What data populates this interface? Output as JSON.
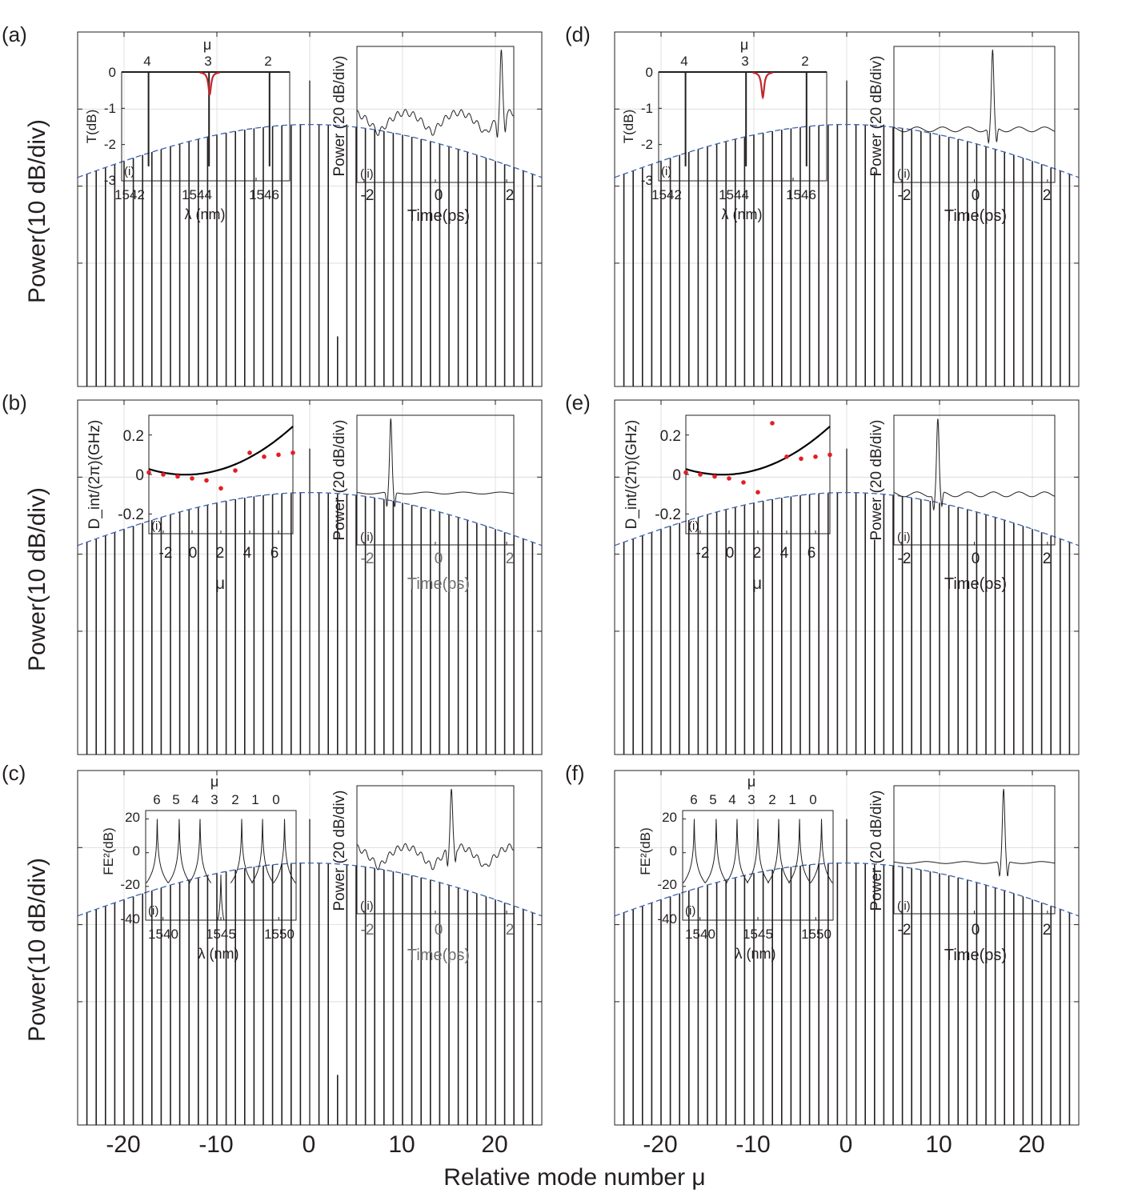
{
  "figure": {
    "xlabel": "Relative mode number μ",
    "ylabel": "Power(10 dB/div)",
    "x_ticks": [
      "-20",
      "-10",
      "0",
      "10",
      "20"
    ]
  },
  "chart_data": [
    {
      "panel": "(a)",
      "type": "bar",
      "xlabel": "Relative mode number μ",
      "ylabel": "Power(10 dB/div)",
      "x_range": [
        -25,
        25
      ],
      "y_range_db": [
        -46,
        0
      ],
      "envelope": "sech2 fit (dashed)",
      "special": {
        "pump": 0,
        "tall_extra": [],
        "low": [
          3
        ],
        "mid_low": []
      },
      "insets": [
        {
          "label": "(i)",
          "type": "line",
          "xlabel": "λ (nm)",
          "ylabel": "T(dB)",
          "xlim": [
            1542,
            1547
          ],
          "ylim": [
            -3,
            0
          ],
          "x_ticks": [
            "1542",
            "1544",
            "1546"
          ],
          "y_ticks": [
            "0",
            "-1",
            "-2",
            "-3"
          ],
          "top_axis_label": "μ",
          "top_ticks": [
            "4",
            "3",
            "2"
          ],
          "resonances_nm": [
            1542.8,
            1544.6,
            1546.4
          ],
          "resonance_depth_db": -2.6,
          "red_dip": {
            "center_nm": 1544.62,
            "depth_db": -0.62
          }
        },
        {
          "label": "(ii)",
          "type": "line",
          "xlabel": "Time(ps)",
          "ylabel": "Power (20 dB/div)",
          "xlim": [
            -2.2,
            2.2
          ],
          "x_ticks": [
            "-2",
            "0",
            "2"
          ],
          "pulse_center_ps": 1.85,
          "background": "modulated"
        }
      ]
    },
    {
      "panel": "(b)",
      "type": "bar",
      "xlabel": "Relative mode number μ",
      "ylabel": "Power(10 dB/div)",
      "x_range": [
        -25,
        25
      ],
      "y_range_db": [
        -46,
        0
      ],
      "envelope": "sech2 fit (dashed)",
      "special": {
        "pump": 0,
        "tall_extra": [],
        "low": [],
        "mid_low": []
      },
      "insets": [
        {
          "label": "(i)",
          "type": "scatter",
          "xlabel": "μ",
          "ylabel": "D_int/(2π)(GHz)",
          "xlim": [
            -3,
            7
          ],
          "ylim": [
            -0.3,
            0.3
          ],
          "x_ticks": [
            "-2",
            "0",
            "2",
            "4",
            "6"
          ],
          "y_ticks": [
            "0.2",
            "0",
            "-0.2"
          ],
          "points": {
            "mu": [
              -3,
              -2,
              -1,
              0,
              1,
              2,
              3,
              4,
              5,
              6,
              7
            ],
            "dint_ghz": [
              0.01,
              0.0,
              -0.01,
              -0.02,
              -0.03,
              -0.07,
              0.02,
              0.11,
              0.09,
              0.1,
              0.11
            ]
          },
          "fit": {
            "type": "parabola",
            "a": 0.0044,
            "b": 0.004,
            "c": 0.0
          }
        },
        {
          "label": "(ii)",
          "type": "line",
          "xlabel": "Time(ps)",
          "ylabel": "Power (20 dB/div)",
          "xlim": [
            -2.2,
            2.2
          ],
          "x_ticks": [
            "-2",
            "0",
            "2"
          ],
          "pulse_center_ps": -1.25,
          "background": "flat"
        }
      ]
    },
    {
      "panel": "(c)",
      "type": "bar",
      "xlabel": "Relative mode number μ",
      "ylabel": "Power(10 dB/div)",
      "x_range": [
        -25,
        25
      ],
      "y_range_db": [
        -46,
        0
      ],
      "envelope": "sech2 fit (dashed)",
      "special": {
        "pump": 0,
        "tall_extra": [],
        "low": [
          3
        ],
        "mid_low": []
      },
      "insets": [
        {
          "label": "(i)",
          "type": "line",
          "xlabel": "λ (nm)",
          "ylabel": "FE²(dB)",
          "xlim": [
            1538.5,
            1551.5
          ],
          "ylim": [
            -40,
            25
          ],
          "x_ticks": [
            "1540",
            "1545",
            "1550"
          ],
          "y_ticks": [
            "20",
            "0",
            "-20",
            "-40"
          ],
          "top_axis_label": "μ",
          "top_ticks": [
            "6",
            "5",
            "4",
            "3",
            "2",
            "1",
            "0"
          ],
          "peaks_nm": [
            1539.5,
            1541.4,
            1543.2,
            1545.0,
            1546.8,
            1548.6,
            1550.5
          ],
          "peak_heights_db": [
            20,
            20,
            20,
            -13,
            20,
            20,
            20
          ]
        },
        {
          "label": "(ii)",
          "type": "line",
          "xlabel": "Time(ps)",
          "ylabel": "Power (20 dB/div)",
          "xlim": [
            -2.2,
            2.2
          ],
          "x_ticks": [
            "-2",
            "0",
            "2"
          ],
          "pulse_center_ps": 0.45,
          "background": "modulated"
        }
      ]
    },
    {
      "panel": "(d)",
      "type": "bar",
      "xlabel": "Relative mode number μ",
      "ylabel": "Power(10 dB/div)",
      "x_range": [
        -25,
        25
      ],
      "y_range_db": [
        -46,
        0
      ],
      "envelope": "sech2 fit (dashed)",
      "special": {
        "pump": 0,
        "tall_extra": [],
        "low": [],
        "mid_low": [
          3
        ]
      },
      "insets": [
        {
          "label": "(i)",
          "type": "line",
          "xlabel": "λ (nm)",
          "ylabel": "T(dB)",
          "xlim": [
            1542,
            1547
          ],
          "ylim": [
            -3,
            0
          ],
          "x_ticks": [
            "1542",
            "1544",
            "1546"
          ],
          "y_ticks": [
            "0",
            "-1",
            "-2",
            "-3"
          ],
          "top_axis_label": "μ",
          "top_ticks": [
            "4",
            "3",
            "2"
          ],
          "resonances_nm": [
            1542.8,
            1544.6,
            1546.4
          ],
          "resonance_depth_db": -2.6,
          "red_dip": {
            "center_nm": 1545.1,
            "depth_db": -0.7
          }
        },
        {
          "label": "(ii)",
          "type": "line",
          "xlabel": "Time(ps)",
          "ylabel": "Power (20 dB/div)",
          "xlim": [
            -2.2,
            2.2
          ],
          "x_ticks": [
            "-2",
            "0",
            "2"
          ],
          "pulse_center_ps": 0.5,
          "background": "flat-ripple"
        }
      ]
    },
    {
      "panel": "(e)",
      "type": "bar",
      "xlabel": "Relative mode number μ",
      "ylabel": "Power(10 dB/div)",
      "x_range": [
        -25,
        25
      ],
      "y_range_db": [
        -46,
        0
      ],
      "envelope": "sech2 fit (dashed)",
      "special": {
        "pump": 0,
        "tall_extra": [],
        "low": [],
        "mid_low": [
          3
        ]
      },
      "insets": [
        {
          "label": "(i)",
          "type": "scatter",
          "xlabel": "μ",
          "ylabel": "D_int/(2π)(GHz)",
          "xlim": [
            -3,
            7
          ],
          "ylim": [
            -0.3,
            0.3
          ],
          "x_ticks": [
            "-2",
            "0",
            "2",
            "4",
            "6"
          ],
          "y_ticks": [
            "0.2",
            "0",
            "-0.2"
          ],
          "points": {
            "mu": [
              -3,
              -2,
              -1,
              0,
              1,
              2,
              3,
              4,
              5,
              6,
              7
            ],
            "dint_ghz": [
              0.01,
              0.0,
              -0.01,
              -0.02,
              -0.04,
              -0.09,
              0.26,
              0.09,
              0.08,
              0.09,
              0.1
            ]
          },
          "fit": {
            "type": "parabola",
            "a": 0.0044,
            "b": 0.004,
            "c": 0.0
          }
        },
        {
          "label": "(ii)",
          "type": "line",
          "xlabel": "Time(ps)",
          "ylabel": "Power (20 dB/div)",
          "xlim": [
            -2.2,
            2.2
          ],
          "x_ticks": [
            "-2",
            "0",
            "2"
          ],
          "pulse_center_ps": -1.0,
          "background": "flat-ripple"
        }
      ]
    },
    {
      "panel": "(f)",
      "type": "bar",
      "xlabel": "Relative mode number μ",
      "ylabel": "Power(10 dB/div)",
      "x_range": [
        -25,
        25
      ],
      "y_range_db": [
        -46,
        0
      ],
      "envelope": "sech2 fit (dashed)",
      "special": {
        "pump": 0,
        "tall_extra": [],
        "low": [],
        "mid_low": []
      },
      "insets": [
        {
          "label": "(i)",
          "type": "line",
          "xlabel": "λ (nm)",
          "ylabel": "FE²(dB)",
          "xlim": [
            1538.5,
            1551.5
          ],
          "ylim": [
            -40,
            25
          ],
          "x_ticks": [
            "1540",
            "1545",
            "1550"
          ],
          "y_ticks": [
            "20",
            "0",
            "-20",
            "-40"
          ],
          "top_axis_label": "μ",
          "top_ticks": [
            "6",
            "5",
            "4",
            "3",
            "2",
            "1",
            "0"
          ],
          "peaks_nm": [
            1539.5,
            1541.4,
            1543.2,
            1545.0,
            1546.8,
            1548.6,
            1550.5
          ],
          "peak_heights_db": [
            20,
            20,
            20,
            20,
            20,
            20,
            20
          ]
        },
        {
          "label": "(ii)",
          "type": "line",
          "xlabel": "Time(ps)",
          "ylabel": "Power (20 dB/div)",
          "xlim": [
            -2.2,
            2.2
          ],
          "x_ticks": [
            "-2",
            "0",
            "2"
          ],
          "pulse_center_ps": 0.8,
          "background": "flat"
        }
      ]
    }
  ]
}
